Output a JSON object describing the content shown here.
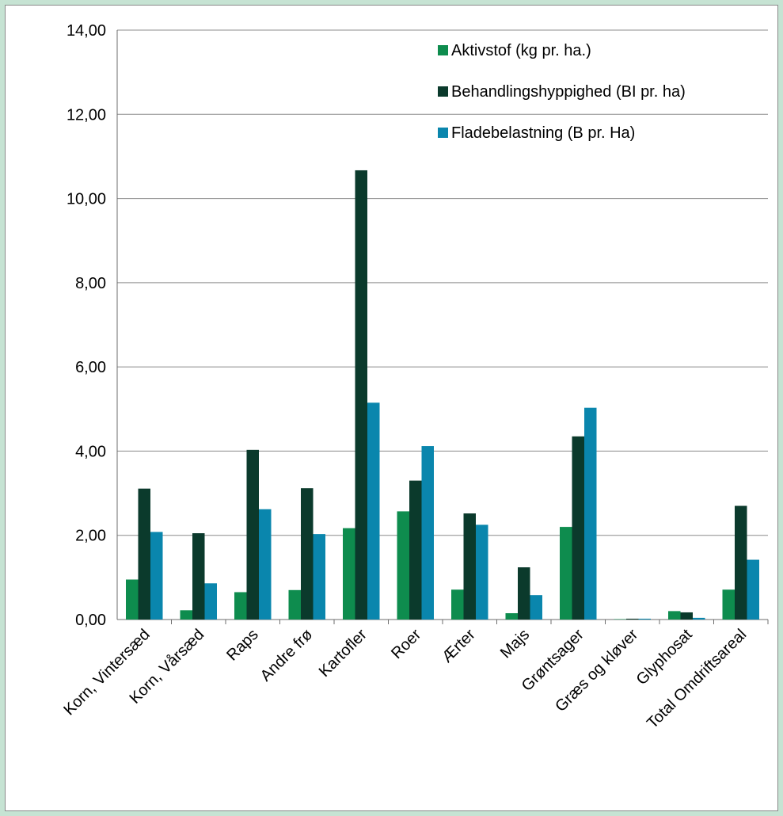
{
  "chart_data": {
    "type": "bar",
    "categories": [
      "Korn, Vintersæd",
      "Korn, Vårsæd",
      "Raps",
      "Andre frø",
      "Kartofler",
      "Roer",
      "Ærter",
      "Majs",
      "Grøntsager",
      "Græs og kløver",
      "Glyphosat",
      "Total Omdriftsareal"
    ],
    "series": [
      {
        "name": "Aktivstof (kg pr. ha.)",
        "color": "#0e8c4e",
        "values": [
          0.95,
          0.22,
          0.65,
          0.7,
          2.17,
          2.57,
          0.71,
          0.15,
          2.2,
          0.01,
          0.2,
          0.71
        ]
      },
      {
        "name": "Behandlingshyppighed (BI pr. ha)",
        "color": "#0b3a2c",
        "values": [
          3.11,
          2.05,
          4.03,
          3.12,
          10.67,
          3.3,
          2.52,
          1.24,
          4.35,
          0.02,
          0.17,
          2.7
        ]
      },
      {
        "name": "Fladebelastning (B pr. Ha)",
        "color": "#0a86ad",
        "values": [
          2.08,
          0.86,
          2.62,
          2.03,
          5.15,
          4.12,
          2.25,
          0.58,
          5.03,
          0.02,
          0.04,
          1.42
        ]
      }
    ],
    "ylim": [
      0,
      14
    ],
    "yticks": [
      "0,00",
      "2,00",
      "4,00",
      "6,00",
      "8,00",
      "10,00",
      "12,00",
      "14,00"
    ],
    "grid": true,
    "legend": "top-right"
  }
}
